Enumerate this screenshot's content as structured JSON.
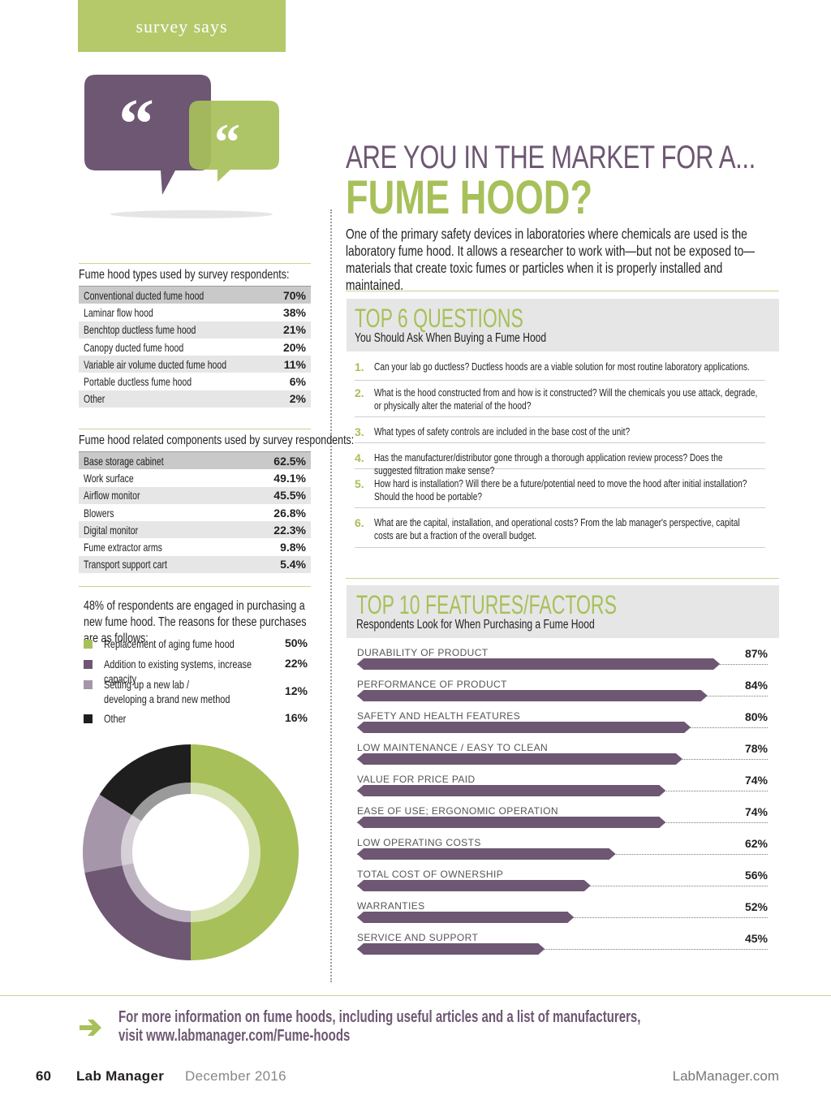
{
  "section_tab": "survey says",
  "headline": {
    "line1": "ARE YOU IN THE MARKET FOR A...",
    "line2": "FUME HOOD?"
  },
  "intro": "One of the primary safety devices in laboratories where chemicals are used is the laboratory fume hood. It allows a researcher to work with—but not be exposed to—materials that create toxic fumes or particles when it is properly installed and maintained.",
  "types_table": {
    "title": "Fume hood types used by survey respondents:",
    "rows": [
      {
        "label": "Conventional ducted fume hood",
        "value": "70%"
      },
      {
        "label": "Laminar flow hood",
        "value": "38%"
      },
      {
        "label": "Benchtop ductless fume hood",
        "value": "21%"
      },
      {
        "label": "Canopy ducted fume hood",
        "value": "20%"
      },
      {
        "label": "Variable air volume ducted fume hood",
        "value": "11%"
      },
      {
        "label": "Portable ductless fume hood",
        "value": "6%"
      },
      {
        "label": "Other",
        "value": "2%"
      }
    ]
  },
  "components_table": {
    "title": "Fume hood related components used by survey respondents:",
    "rows": [
      {
        "label": "Base storage cabinet",
        "value": "62.5%"
      },
      {
        "label": "Work surface",
        "value": "49.1%"
      },
      {
        "label": "Airflow monitor",
        "value": "45.5%"
      },
      {
        "label": "Blowers",
        "value": "26.8%"
      },
      {
        "label": "Digital monitor",
        "value": "22.3%"
      },
      {
        "label": "Fume extractor arms",
        "value": "9.8%"
      },
      {
        "label": "Transport support cart",
        "value": "5.4%"
      }
    ]
  },
  "reasons": {
    "title": "48% of respondents are engaged in purchasing a new fume hood. The reasons for these purchases are as follows:",
    "items": [
      {
        "label": "Replacement of aging fume hood",
        "value": "50%",
        "color": "#a7c05a"
      },
      {
        "label": "Addition to existing systems, increase capacity",
        "value": "22%",
        "color": "#6e5773"
      },
      {
        "label": "Setting up a new lab / developing a brand new method",
        "value": "12%",
        "color": "#a596aa"
      },
      {
        "label": "Other",
        "value": "16%",
        "color": "#1e1e1e"
      }
    ]
  },
  "chart_data": {
    "type": "pie",
    "categories": [
      "Replacement of aging fume hood",
      "Addition to existing systems, increase capacity",
      "Setting up a new lab / developing a brand new method",
      "Other"
    ],
    "values": [
      50,
      22,
      12,
      16
    ],
    "colors": [
      "#a7c05a",
      "#6e5773",
      "#a596aa",
      "#1e1e1e"
    ]
  },
  "questions": {
    "title": "TOP 6 QUESTIONS",
    "subtitle": "You Should Ask When Buying a Fume Hood",
    "items": [
      {
        "num": "1.",
        "text": "Can your lab go ductless? Ductless hoods are a viable solution for most routine laboratory applications."
      },
      {
        "num": "2.",
        "text": "What is the hood constructed from and how is it constructed? Will the chemicals you use attack, degrade, or physically alter the material of the hood?"
      },
      {
        "num": "3.",
        "text": "What types of safety controls are included in the base cost of the unit?"
      },
      {
        "num": "4.",
        "text": "Has the manufacturer/distributor gone through a thorough application review process? Does the suggested filtration make sense?"
      },
      {
        "num": "5.",
        "text": "How hard is installation? Will there be a future/potential need to move the hood after initial installation? Should the hood be portable?"
      },
      {
        "num": "6.",
        "text": "What are the capital, installation, and operational costs? From the lab manager's perspective, capital costs are but a fraction of the overall budget."
      }
    ]
  },
  "features": {
    "title": "TOP 10 FEATURES/FACTORS",
    "subtitle": "Respondents Look for When Purchasing a Fume Hood",
    "items": [
      {
        "label": "DURABILITY OF PRODUCT",
        "value": "87%",
        "pct": 87
      },
      {
        "label": "PERFORMANCE OF PRODUCT",
        "value": "84%",
        "pct": 84
      },
      {
        "label": "SAFETY AND HEALTH FEATURES",
        "value": "80%",
        "pct": 80
      },
      {
        "label": "LOW MAINTENANCE / EASY TO CLEAN",
        "value": "78%",
        "pct": 78
      },
      {
        "label": "VALUE FOR PRICE PAID",
        "value": "74%",
        "pct": 74
      },
      {
        "label": "EASE OF USE; ERGONOMIC OPERATION",
        "value": "74%",
        "pct": 74
      },
      {
        "label": "LOW OPERATING COSTS",
        "value": "62%",
        "pct": 62
      },
      {
        "label": "TOTAL COST OF OWNERSHIP",
        "value": "56%",
        "pct": 56
      },
      {
        "label": "WARRANTIES",
        "value": "52%",
        "pct": 52
      },
      {
        "label": "SERVICE AND SUPPORT",
        "value": "45%",
        "pct": 45
      }
    ]
  },
  "footer": {
    "more_info_line1": "For more information on fume hoods, including useful articles and a list of manufacturers,",
    "more_info_line2": "visit www.labmanager.com/Fume-hoods",
    "page_number": "60",
    "magazine": "Lab Manager",
    "date": "December 2016",
    "website": "LabManager.com"
  }
}
